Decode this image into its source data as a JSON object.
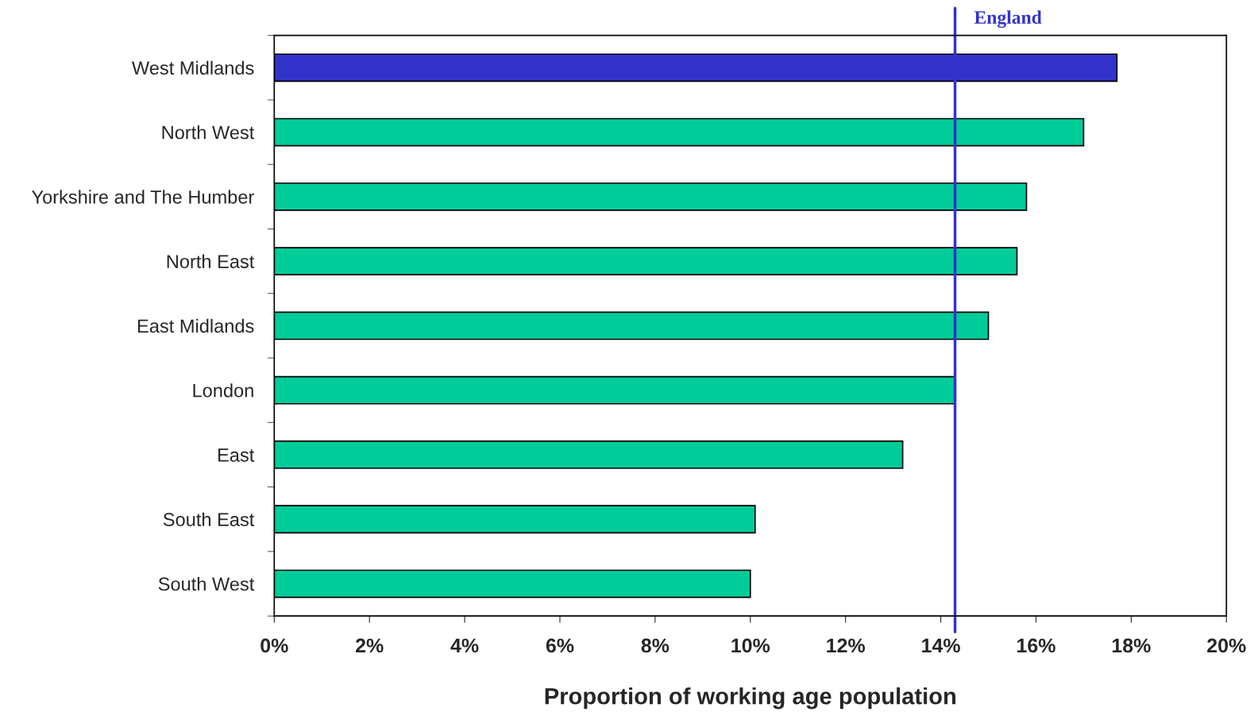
{
  "chart_data": {
    "type": "bar",
    "orientation": "horizontal",
    "xlabel": "Proportion of working age population",
    "categories": [
      "West Midlands",
      "North West",
      "Yorkshire and The Humber",
      "North East",
      "East Midlands",
      "London",
      "East",
      "South East",
      "South West"
    ],
    "values": [
      17.7,
      17.0,
      15.8,
      15.6,
      15.0,
      14.3,
      13.2,
      10.1,
      10.0
    ],
    "colors": [
      "#3333cc",
      "#00cc99",
      "#00cc99",
      "#00cc99",
      "#00cc99",
      "#00cc99",
      "#00cc99",
      "#00cc99",
      "#00cc99"
    ],
    "xlim": [
      0,
      20
    ],
    "xticks": [
      {
        "value": 0,
        "label": "0%"
      },
      {
        "value": 2,
        "label": "2%"
      },
      {
        "value": 4,
        "label": "4%"
      },
      {
        "value": 6,
        "label": "6%"
      },
      {
        "value": 8,
        "label": "8%"
      },
      {
        "value": 10,
        "label": "10%"
      },
      {
        "value": 12,
        "label": "12%"
      },
      {
        "value": 14,
        "label": "14%"
      },
      {
        "value": 16,
        "label": "16%"
      },
      {
        "value": 18,
        "label": "18%"
      },
      {
        "value": 20,
        "label": "20%"
      }
    ],
    "ref_lines": [
      {
        "axis": "x",
        "value": 14.3,
        "label": "England",
        "color": "#3333cc"
      }
    ],
    "grid": false,
    "legend": false
  }
}
